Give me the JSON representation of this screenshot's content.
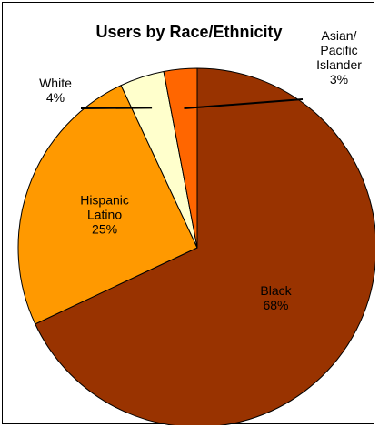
{
  "chart_data": {
    "type": "pie",
    "title": "Users by Race/Ethnicity",
    "slices": [
      {
        "name": "Black",
        "label_lines": [
          "Black",
          "68%"
        ],
        "value": 68,
        "color": "#993300"
      },
      {
        "name": "Hispanic Latino",
        "label_lines": [
          "Hispanic",
          "Latino",
          "25%"
        ],
        "value": 25,
        "color": "#ff9900"
      },
      {
        "name": "White",
        "label_lines": [
          "White",
          "4%"
        ],
        "value": 4,
        "color": "#ffffcc"
      },
      {
        "name": "Asian/ Pacific Islander",
        "label_lines": [
          "Asian/",
          "Pacific",
          "Islander",
          "3%"
        ],
        "value": 3,
        "color": "#ff6600"
      }
    ],
    "legend": "none",
    "start_angle": "12 o'clock, clockwise"
  }
}
